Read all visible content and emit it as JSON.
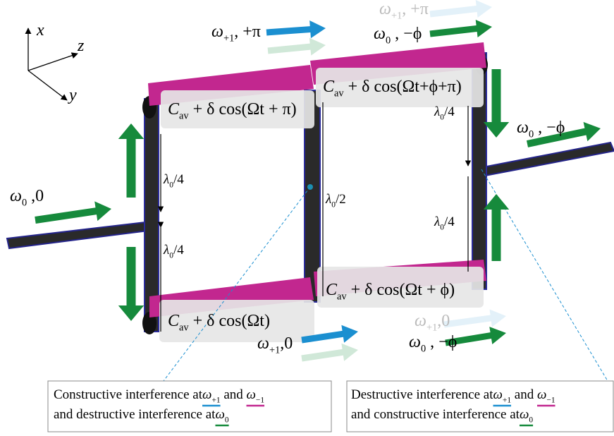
{
  "axes": {
    "x": "x",
    "y": "y",
    "z": "z"
  },
  "modulation": [
    {
      "c": "C",
      "sub": "av",
      "expr": " + δ cos(Ωt + π)"
    },
    {
      "c": "C",
      "sub": "av",
      "expr": " + δ cos(Ωt+ϕ+π)"
    },
    {
      "c": "C",
      "sub": "av",
      "expr": " + δ cos(Ωt)"
    },
    {
      "c": "C",
      "sub": "av",
      "expr": " + δ cos(Ωt + ϕ)"
    }
  ],
  "waves": [
    {
      "sym": "ω",
      "sub": "0",
      "phase": " ,0"
    },
    {
      "sym": "ω",
      "sub": "+1",
      "phase": ", +π"
    },
    {
      "sym": "ω",
      "sub": "+1",
      "phase": ", +π"
    },
    {
      "sym": "ω",
      "sub": "0",
      "phase": " , −ϕ"
    },
    {
      "sym": "ω",
      "sub": "0",
      "phase": " , −ϕ"
    },
    {
      "sym": "ω",
      "sub": "+1",
      "phase": ",0"
    },
    {
      "sym": "ω",
      "sub": "+1",
      "phase": ",0"
    },
    {
      "sym": "ω",
      "sub": "0",
      "phase": " , −ϕ"
    }
  ],
  "spacings": [
    {
      "sym": "λ",
      "sub": "0",
      "rest": "/4"
    },
    {
      "sym": "λ",
      "sub": "0",
      "rest": "/4"
    },
    {
      "sym": "λ",
      "sub": "0",
      "rest": "/2"
    },
    {
      "sym": "λ",
      "sub": "0",
      "rest": "/4"
    },
    {
      "sym": "λ",
      "sub": "0",
      "rest": "/4"
    }
  ],
  "notes": [
    {
      "line1": "Constructive interference at",
      "w1": {
        "sym": "ω",
        "sub": "+1"
      },
      "and": " and ",
      "w2": {
        "sym": "ω",
        "sub": "−1"
      },
      "line2": "and destructive interference at",
      "w3": {
        "sym": "ω",
        "sub": "0"
      }
    },
    {
      "line1": "Destructive interference at",
      "w1": {
        "sym": "ω",
        "sub": "+1"
      },
      "and": " and ",
      "w2": {
        "sym": "ω",
        "sub": "−1"
      },
      "line2": "and constructive interference at",
      "w3": {
        "sym": "ω",
        "sub": "0"
      }
    }
  ]
}
